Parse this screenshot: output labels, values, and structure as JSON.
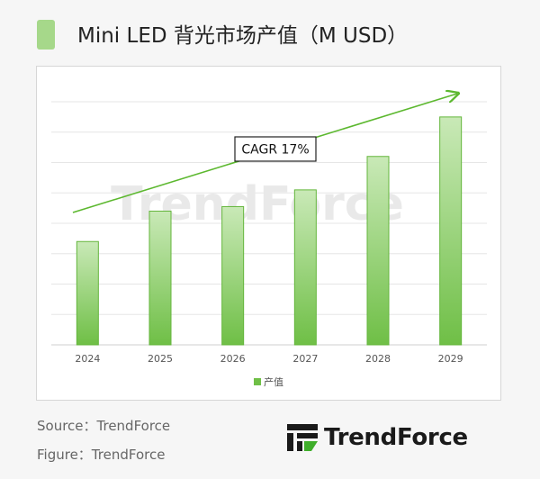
{
  "title": "Mini LED 背光市场产值（M USD）",
  "footer": {
    "source": "Source：TrendForce",
    "figure": "Figure：TrendForce"
  },
  "logo": {
    "text": "TrendForce",
    "icon": "trendforce-logo-icon"
  },
  "watermark": "TrendForce",
  "colors": {
    "bar_top": "#c9e9b7",
    "bar_bottom": "#6fbf46",
    "bar_stroke": "#64b63c",
    "arrow": "#5cb82f",
    "title_marker": "#a6d88a"
  },
  "chart_data": {
    "type": "bar",
    "categories": [
      "2024",
      "2025",
      "2026",
      "2027",
      "2028",
      "2029"
    ],
    "series": [
      {
        "name": "产值",
        "values": [
          34,
          44,
          45.5,
          51,
          62,
          75
        ]
      }
    ],
    "ylim": [
      0,
      80
    ],
    "grid": true,
    "y_tick_labels_visible": false,
    "legend": {
      "position": "bottom",
      "entries": [
        "产值"
      ]
    },
    "annotation": {
      "text": "CAGR 17%",
      "type": "trend-arrow"
    }
  }
}
